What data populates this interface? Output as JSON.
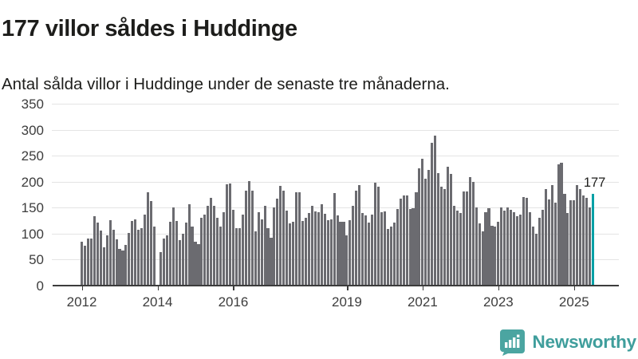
{
  "header": {
    "title": "177 villor såldes i Huddinge",
    "subtitle": "Antal sålda villor i Huddinge under de senaste tre månaderna."
  },
  "chart_data": {
    "type": "bar",
    "title": "177 villor såldes i Huddinge",
    "xlabel": "",
    "ylabel": "",
    "frequency": "monthly",
    "start_year": 2012,
    "x_tick_years": [
      2012,
      2014,
      2016,
      2019,
      2021,
      2023,
      2025
    ],
    "y_ticks": [
      0,
      50,
      100,
      150,
      200,
      250,
      300,
      350
    ],
    "ylim": [
      0,
      350
    ],
    "grid": "horizontal",
    "legend": "none",
    "values": [
      85,
      76,
      90,
      91,
      134,
      121,
      106,
      73,
      97,
      126,
      108,
      89,
      71,
      68,
      78,
      101,
      124,
      128,
      108,
      110,
      137,
      180,
      163,
      113,
      0,
      65,
      91,
      96,
      123,
      150,
      125,
      87,
      100,
      121,
      156,
      113,
      85,
      80,
      130,
      137,
      154,
      169,
      154,
      131,
      114,
      141,
      195,
      196,
      146,
      110,
      110,
      136,
      182,
      201,
      183,
      104,
      142,
      127,
      153,
      111,
      92,
      150,
      167,
      192,
      183,
      144,
      120,
      123,
      179,
      179,
      124,
      131,
      139,
      154,
      143,
      142,
      157,
      138,
      126,
      128,
      178,
      135,
      123,
      123,
      96,
      126,
      153,
      183,
      194,
      140,
      135,
      122,
      136,
      198,
      190,
      142,
      143,
      109,
      114,
      121,
      148,
      167,
      174,
      174,
      147,
      149,
      180,
      225,
      244,
      206,
      222,
      275,
      288,
      216,
      191,
      185,
      229,
      215,
      154,
      145,
      139,
      181,
      181,
      209,
      200,
      151,
      119,
      105,
      141,
      149,
      115,
      114,
      123,
      150,
      145,
      150,
      146,
      141,
      134,
      136,
      171,
      169,
      142,
      114,
      100,
      130,
      146,
      186,
      166,
      194,
      159,
      234,
      237,
      177,
      140,
      165,
      164,
      193,
      186,
      174,
      169,
      150,
      177
    ],
    "highlight_last_bar": true,
    "highlight_value_label": "177",
    "colors": {
      "bar": "#6b6b70",
      "highlight": "#00a0a6",
      "grid": "#e4e4e4",
      "axis_line": "#3c3c3c",
      "tick_label": "#3d3d3d"
    }
  },
  "annotation": {
    "label": "177"
  },
  "brand": {
    "name": "Newsworthy",
    "color": "#3f9e9c"
  }
}
